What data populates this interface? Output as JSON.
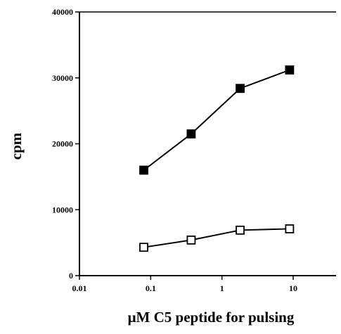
{
  "chart_data": {
    "type": "line",
    "x_label": "μM C5 peptide for pulsing",
    "y_label": "cpm",
    "xscale": "log",
    "xlim": [
      0.01,
      40
    ],
    "xticks": [
      0.01,
      0.1,
      1,
      10
    ],
    "ylim": [
      0,
      40000
    ],
    "yticks": [
      0,
      10000,
      20000,
      30000,
      40000
    ],
    "x": [
      0.08,
      0.37,
      1.8,
      8.9
    ],
    "series": [
      {
        "color": "#000000",
        "marker_fill": "#000000",
        "values": [
          16000,
          21500,
          28400,
          31200
        ]
      },
      {
        "color": "#000000",
        "marker_fill": "#ffffff",
        "values": [
          4300,
          5400,
          6900,
          7100
        ]
      }
    ]
  }
}
